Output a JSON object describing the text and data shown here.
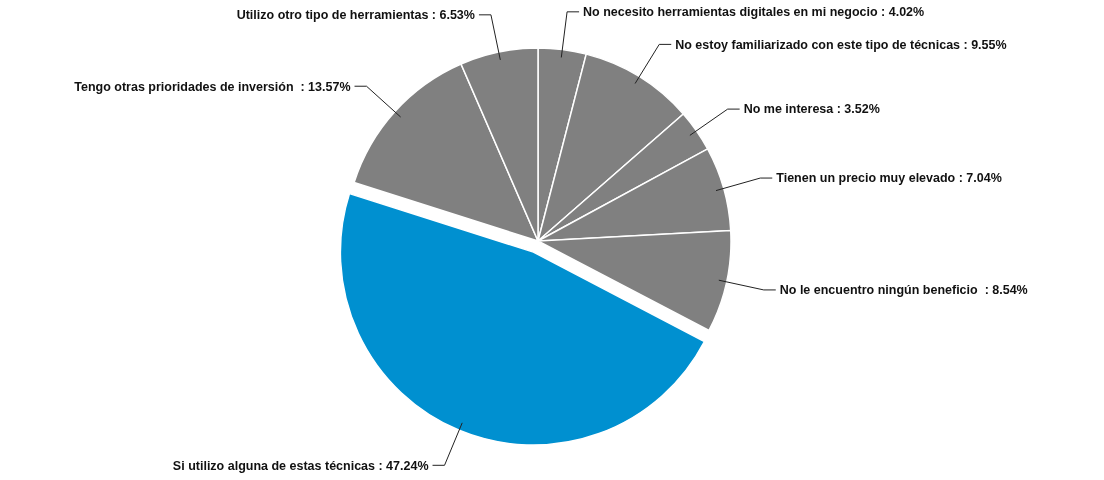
{
  "chart_data": {
    "type": "pie",
    "categories": [
      "No necesito herramientas digitales en mi negocio",
      "No estoy familiarizado con este tipo de técnicas",
      "No me interesa",
      "Tienen un precio muy elevado",
      "No le encuentro ningún beneficio ",
      "Si utilizo alguna de estas técnicas",
      "Tengo otras prioridades de inversión ",
      "Utilizo otro tipo de herramientas"
    ],
    "values": [
      4.02,
      9.55,
      3.52,
      7.04,
      8.54,
      47.24,
      13.57,
      6.53
    ],
    "colors": [
      "#808080",
      "#808080",
      "#808080",
      "#808080",
      "#808080",
      "#0090d0",
      "#808080",
      "#808080"
    ],
    "value_labels": [
      ": 4.02%",
      ": 9.55%",
      ": 3.52%",
      ": 7.04%",
      ": 8.54%",
      ": 47.24%",
      ": 13.57%",
      ": 6.53%"
    ]
  }
}
